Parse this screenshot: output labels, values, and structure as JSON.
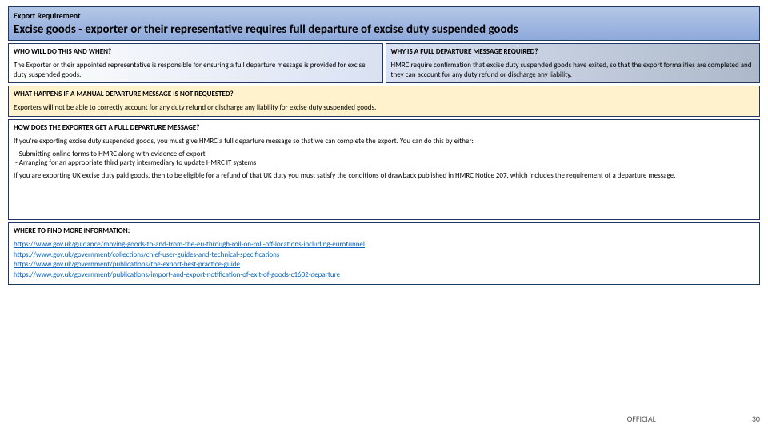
{
  "header": {
    "label": "Export Requirement",
    "title": "Excise goods - exporter or their representative requires full departure of excise duty suspended goods"
  },
  "left1": {
    "title": "WHO WILL DO THIS AND WHEN?",
    "body": "The Exporter or their appointed representative is responsible for ensuring a full departure message is provided for excise duty suspended goods."
  },
  "right1": {
    "title": "WHY IS A FULL DEPARTURE MESSAGE REQUIRED?",
    "body": "HMRC require confirmation that excise duty suspended goods have exited, so that the export formalities are completed and they can account for any duty refund or discharge any liability."
  },
  "yellow": {
    "title": "WHAT HAPPENS IF A MANUAL DEPARTURE MESSAGE IS NOT REQUESTED?",
    "body": "Exporters will not be able to correctly account for any duty refund or discharge any liability for excise duty suspended goods."
  },
  "how": {
    "title": "HOW DOES THE EXPORTER GET A FULL DEPARTURE MESSAGE?",
    "intro": "If you're exporting excise duty suspended goods, you must give HMRC a full departure message so that we can complete the export. You can do this by either:",
    "bullet1": "Submitting online forms to HMRC along with evidence of export",
    "bullet2": "Arranging for an appropriate third party intermediary to update HMRC IT systems",
    "outro": "If you are exporting UK excise duty paid goods, then to be eligible for a refund of that UK duty you must satisfy the conditions of drawback published in HMRC Notice 207, which includes the requirement of a departure message."
  },
  "more": {
    "title": "WHERE TO FIND MORE INFORMATION:",
    "link1": "https://www.gov.uk/guidance/moving-goods-to-and-from-the-eu-through-roll-on-roll-off-locations-including-eurotunnel",
    "link2": "https://www.gov.uk/government/collections/chief-user-guides-and-technical-specifications",
    "link3": "https://www.gov.uk/government/publications/the-export-best-practice-guide",
    "link4": "https://www.gov.uk/government/publications/import-and-export-notification-of-exit-of-goods-c1602-departure"
  },
  "footer": {
    "official": "OFFICIAL",
    "page": "30"
  }
}
